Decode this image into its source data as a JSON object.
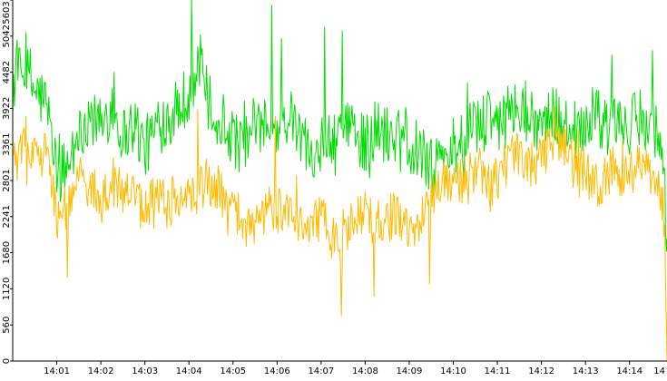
{
  "chart_data": {
    "type": "line",
    "title": "",
    "xlabel": "",
    "ylabel": "",
    "x_tick_labels": [
      "14:01",
      "14:02",
      "14:03",
      "14:04",
      "14:05",
      "14:06",
      "14:07",
      "14:08",
      "14:09",
      "14:10",
      "14:11",
      "14:12",
      "14:13",
      "14:14",
      "14"
    ],
    "y_tick_labels": [
      "0",
      "560",
      "1120",
      "1680",
      "2241",
      "2801",
      "3361",
      "3922",
      "4482",
      "5042",
      "5603"
    ],
    "ylim": [
      0,
      5603
    ],
    "x_range_minutes": [
      0,
      14.85
    ],
    "grid": false,
    "legend": "none",
    "series": [
      {
        "color": "#00dd00",
        "profile": [
          [
            0.0,
            4300
          ],
          [
            0.25,
            4500
          ],
          [
            0.5,
            4200
          ],
          [
            0.75,
            4000
          ],
          [
            1.0,
            2900
          ],
          [
            1.25,
            3000
          ],
          [
            1.5,
            3500
          ],
          [
            1.75,
            3800
          ],
          [
            2.0,
            3600
          ],
          [
            2.25,
            4000
          ],
          [
            2.5,
            3500
          ],
          [
            2.75,
            3700
          ],
          [
            3.0,
            3300
          ],
          [
            3.25,
            3600
          ],
          [
            3.5,
            3800
          ],
          [
            3.75,
            3900
          ],
          [
            4.0,
            4200
          ],
          [
            4.25,
            4500
          ],
          [
            4.5,
            3900
          ],
          [
            4.75,
            3700
          ],
          [
            5.0,
            3500
          ],
          [
            5.25,
            3300
          ],
          [
            5.5,
            3700
          ],
          [
            5.75,
            3500
          ],
          [
            6.0,
            3600
          ],
          [
            6.25,
            3800
          ],
          [
            6.5,
            3500
          ],
          [
            6.75,
            3300
          ],
          [
            7.0,
            3400
          ],
          [
            7.25,
            3300
          ],
          [
            7.5,
            3500
          ],
          [
            7.75,
            3600
          ],
          [
            8.0,
            3400
          ],
          [
            8.25,
            3600
          ],
          [
            8.5,
            3500
          ],
          [
            8.75,
            3600
          ],
          [
            9.0,
            3400
          ],
          [
            9.25,
            3300
          ],
          [
            9.5,
            3000
          ],
          [
            9.75,
            3200
          ],
          [
            10.0,
            3300
          ],
          [
            10.25,
            3500
          ],
          [
            10.5,
            3600
          ],
          [
            10.75,
            3700
          ],
          [
            11.0,
            3700
          ],
          [
            11.25,
            3800
          ],
          [
            11.5,
            3900
          ],
          [
            11.75,
            3800
          ],
          [
            12.0,
            3700
          ],
          [
            12.25,
            3800
          ],
          [
            12.5,
            3700
          ],
          [
            12.75,
            3600
          ],
          [
            13.0,
            3700
          ],
          [
            13.25,
            3800
          ],
          [
            13.5,
            3600
          ],
          [
            13.75,
            3700
          ],
          [
            14.0,
            3600
          ],
          [
            14.25,
            3800
          ],
          [
            14.5,
            3700
          ],
          [
            14.75,
            3400
          ],
          [
            14.85,
            1900
          ]
        ],
        "noise": 480,
        "spikes": [
          [
            0.4,
            4850
          ],
          [
            2.3,
            4480
          ],
          [
            4.06,
            5603
          ],
          [
            4.25,
            5060
          ],
          [
            5.88,
            5520
          ],
          [
            6.1,
            5000
          ],
          [
            7.08,
            5180
          ],
          [
            7.48,
            5120
          ],
          [
            13.6,
            4750
          ],
          [
            14.52,
            4820
          ]
        ]
      },
      {
        "color": "#ffbb00",
        "profile": [
          [
            0.0,
            3000
          ],
          [
            0.25,
            3400
          ],
          [
            0.5,
            3300
          ],
          [
            0.75,
            3200
          ],
          [
            1.0,
            2200
          ],
          [
            1.25,
            2400
          ],
          [
            1.5,
            2800
          ],
          [
            1.75,
            2700
          ],
          [
            2.0,
            2500
          ],
          [
            2.25,
            2700
          ],
          [
            2.5,
            2600
          ],
          [
            2.75,
            2500
          ],
          [
            3.0,
            2300
          ],
          [
            3.25,
            2600
          ],
          [
            3.5,
            2400
          ],
          [
            3.75,
            2600
          ],
          [
            4.0,
            2500
          ],
          [
            4.25,
            2700
          ],
          [
            4.5,
            2800
          ],
          [
            4.75,
            2600
          ],
          [
            5.0,
            2400
          ],
          [
            5.25,
            2100
          ],
          [
            5.5,
            2200
          ],
          [
            5.75,
            2300
          ],
          [
            6.0,
            2300
          ],
          [
            6.25,
            2400
          ],
          [
            6.5,
            2200
          ],
          [
            6.75,
            2100
          ],
          [
            7.0,
            2200
          ],
          [
            7.25,
            2000
          ],
          [
            7.5,
            1800
          ],
          [
            7.75,
            2200
          ],
          [
            8.0,
            2300
          ],
          [
            8.25,
            2100
          ],
          [
            8.5,
            2200
          ],
          [
            8.75,
            2300
          ],
          [
            9.0,
            2000
          ],
          [
            9.25,
            2200
          ],
          [
            9.5,
            2500
          ],
          [
            9.75,
            2700
          ],
          [
            10.0,
            2800
          ],
          [
            10.25,
            2800
          ],
          [
            10.5,
            2900
          ],
          [
            10.75,
            2700
          ],
          [
            11.0,
            2800
          ],
          [
            11.25,
            3100
          ],
          [
            11.5,
            3200
          ],
          [
            11.75,
            3000
          ],
          [
            12.0,
            3100
          ],
          [
            12.25,
            3500
          ],
          [
            12.5,
            3300
          ],
          [
            12.75,
            3100
          ],
          [
            13.0,
            2900
          ],
          [
            13.25,
            2700
          ],
          [
            13.5,
            2900
          ],
          [
            13.75,
            2900
          ],
          [
            14.0,
            2900
          ],
          [
            14.25,
            3100
          ],
          [
            14.5,
            2800
          ],
          [
            14.75,
            2500
          ],
          [
            14.8,
            1900
          ],
          [
            14.85,
            0
          ]
        ],
        "noise": 380,
        "spikes": [
          [
            0.3,
            3800
          ],
          [
            1.25,
            1300
          ],
          [
            4.2,
            3900
          ],
          [
            5.95,
            3800
          ],
          [
            7.45,
            700
          ],
          [
            8.2,
            1000
          ],
          [
            9.45,
            1200
          ],
          [
            12.3,
            3950
          ]
        ]
      }
    ]
  }
}
